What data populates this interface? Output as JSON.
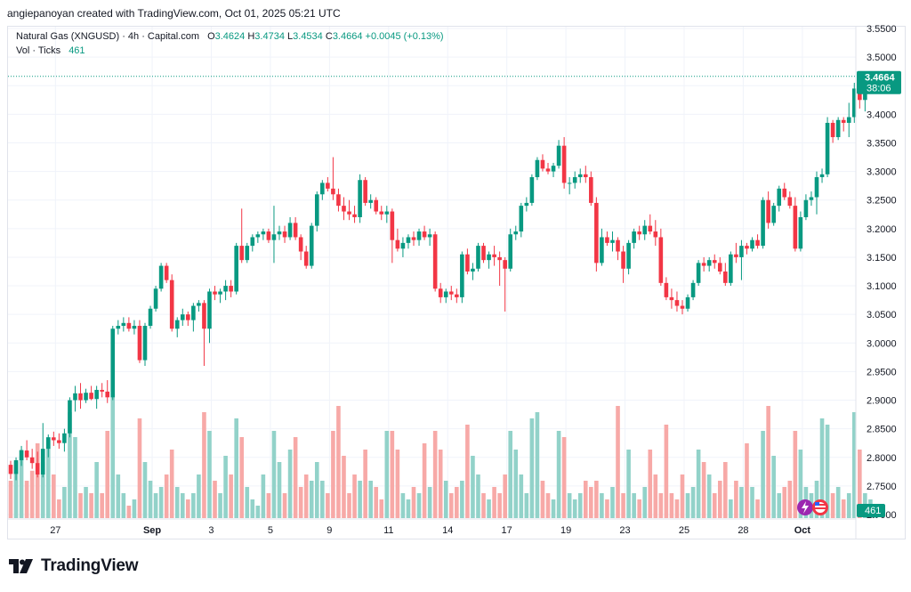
{
  "header": {
    "attribution": "angiepanoyan created with TradingView.com, Oct 01, 2025 05:21 UTC"
  },
  "legend": {
    "symbol": "Natural Gas (XNGUSD) · 4h · Capital.com",
    "o_label": "O",
    "o_value": "3.4624",
    "h_label": "H",
    "h_value": "3.4734",
    "l_label": "L",
    "l_value": "3.4534",
    "c_label": "C",
    "c_value": "3.4664",
    "change": "+0.0045 (+0.13%)",
    "vol_label": "Vol · Ticks",
    "vol_value": "461"
  },
  "price_badge": {
    "price": "3.4664",
    "countdown": "38:06"
  },
  "volume_badge": "461",
  "footer": {
    "brand": "TradingView"
  },
  "colors": {
    "up": "#089981",
    "down": "#f23645",
    "vol_up": "#92d2c9",
    "vol_down": "#f7a9a7"
  },
  "chart_data": {
    "type": "candlestick",
    "interval": "4h",
    "y_ticks": [
      "3.5500",
      "3.5000",
      "3.4500",
      "3.4000",
      "3.3500",
      "3.3000",
      "3.2500",
      "3.2000",
      "3.1500",
      "3.1000",
      "3.0500",
      "3.0000",
      "2.9500",
      "2.9000",
      "2.8500",
      "2.8000",
      "2.7500",
      "2.7000"
    ],
    "ylim": [
      2.7,
      3.55
    ],
    "x_tick_labels": [
      {
        "label": "27",
        "index": 8
      },
      {
        "label": "Sep",
        "index": 26
      },
      {
        "label": "3",
        "index": 37
      },
      {
        "label": "5",
        "index": 48
      },
      {
        "label": "9",
        "index": 59
      },
      {
        "label": "11",
        "index": 70
      },
      {
        "label": "14",
        "index": 81
      },
      {
        "label": "17",
        "index": 92
      },
      {
        "label": "19",
        "index": 103
      },
      {
        "label": "23",
        "index": 114
      },
      {
        "label": "25",
        "index": 125
      },
      {
        "label": "28",
        "index": 136
      },
      {
        "label": "Oct",
        "index": 147
      }
    ],
    "last_price": 3.4664,
    "candles": [
      [
        2.787,
        2.794,
        2.762,
        2.771,
        0.3
      ],
      [
        2.771,
        2.8,
        2.76,
        2.795,
        0.45
      ],
      [
        2.795,
        2.82,
        2.785,
        2.812,
        0.55
      ],
      [
        2.812,
        2.83,
        2.795,
        2.8,
        0.3
      ],
      [
        2.8,
        2.815,
        2.78,
        2.79,
        0.38
      ],
      [
        2.79,
        2.81,
        2.765,
        2.77,
        0.6
      ],
      [
        2.77,
        2.86,
        2.765,
        2.815,
        0.45
      ],
      [
        2.815,
        2.84,
        2.8,
        2.835,
        0.65
      ],
      [
        2.835,
        2.845,
        2.82,
        2.83,
        0.35
      ],
      [
        2.83,
        2.842,
        2.815,
        2.825,
        0.15
      ],
      [
        2.825,
        2.85,
        2.81,
        2.842,
        0.25
      ],
      [
        2.842,
        2.905,
        2.835,
        2.9,
        0.85
      ],
      [
        2.9,
        2.925,
        2.88,
        2.912,
        0.65
      ],
      [
        2.912,
        2.93,
        2.885,
        2.9,
        0.2
      ],
      [
        2.9,
        2.92,
        2.895,
        2.913,
        0.25
      ],
      [
        2.913,
        2.925,
        2.9,
        2.902,
        0.2
      ],
      [
        2.902,
        2.925,
        2.885,
        2.918,
        0.45
      ],
      [
        2.918,
        2.93,
        2.905,
        2.915,
        0.2
      ],
      [
        2.915,
        2.935,
        2.895,
        2.905,
        0.7
      ],
      [
        2.905,
        3.03,
        2.9,
        3.025,
        1.0
      ],
      [
        3.025,
        3.04,
        3.015,
        3.03,
        0.35
      ],
      [
        3.03,
        3.045,
        3.02,
        3.035,
        0.2
      ],
      [
        3.035,
        3.045,
        3.02,
        3.025,
        0.1
      ],
      [
        3.025,
        3.04,
        3.015,
        3.03,
        0.15
      ],
      [
        3.03,
        3.04,
        2.965,
        2.97,
        0.8
      ],
      [
        2.97,
        3.035,
        2.96,
        3.03,
        0.45
      ],
      [
        3.03,
        3.065,
        3.025,
        3.06,
        0.3
      ],
      [
        3.06,
        3.1,
        3.055,
        3.095,
        0.2
      ],
      [
        3.095,
        3.14,
        3.09,
        3.135,
        0.25
      ],
      [
        3.135,
        3.14,
        3.105,
        3.11,
        0.35
      ],
      [
        3.11,
        3.12,
        3.02,
        3.025,
        0.55
      ],
      [
        3.025,
        3.045,
        3.01,
        3.04,
        0.25
      ],
      [
        3.04,
        3.06,
        3.03,
        3.05,
        0.2
      ],
      [
        3.05,
        3.055,
        3.03,
        3.04,
        0.15
      ],
      [
        3.04,
        3.07,
        3.02,
        3.065,
        0.2
      ],
      [
        3.065,
        3.075,
        3.055,
        3.07,
        0.35
      ],
      [
        3.07,
        3.075,
        2.96,
        3.025,
        0.85
      ],
      [
        3.025,
        3.095,
        3.0,
        3.09,
        0.7
      ],
      [
        3.09,
        3.1,
        3.075,
        3.085,
        0.3
      ],
      [
        3.085,
        3.095,
        3.07,
        3.09,
        0.2
      ],
      [
        3.09,
        3.11,
        3.075,
        3.1,
        0.5
      ],
      [
        3.1,
        3.11,
        3.08,
        3.09,
        0.35
      ],
      [
        3.09,
        3.175,
        3.085,
        3.17,
        0.8
      ],
      [
        3.17,
        3.235,
        3.14,
        3.145,
        0.65
      ],
      [
        3.145,
        3.175,
        3.14,
        3.17,
        0.25
      ],
      [
        3.17,
        3.19,
        3.16,
        3.185,
        0.15
      ],
      [
        3.185,
        3.195,
        3.175,
        3.19,
        0.1
      ],
      [
        3.19,
        3.2,
        3.18,
        3.195,
        0.35
      ],
      [
        3.195,
        3.2,
        3.175,
        3.18,
        0.2
      ],
      [
        3.18,
        3.24,
        3.14,
        3.19,
        0.7
      ],
      [
        3.19,
        3.205,
        3.18,
        3.195,
        0.45
      ],
      [
        3.195,
        3.205,
        3.175,
        3.185,
        0.2
      ],
      [
        3.185,
        3.22,
        3.18,
        3.21,
        0.55
      ],
      [
        3.21,
        3.22,
        3.18,
        3.185,
        0.65
      ],
      [
        3.185,
        3.19,
        3.145,
        3.16,
        0.25
      ],
      [
        3.16,
        3.17,
        3.13,
        3.135,
        0.35
      ],
      [
        3.135,
        3.21,
        3.13,
        3.205,
        0.3
      ],
      [
        3.205,
        3.265,
        3.195,
        3.26,
        0.45
      ],
      [
        3.26,
        3.285,
        3.25,
        3.28,
        0.3
      ],
      [
        3.28,
        3.29,
        3.265,
        3.27,
        0.2
      ],
      [
        3.27,
        3.325,
        3.25,
        3.26,
        0.7
      ],
      [
        3.26,
        3.27,
        3.23,
        3.24,
        0.9
      ],
      [
        3.24,
        3.255,
        3.215,
        3.23,
        0.5
      ],
      [
        3.23,
        3.25,
        3.215,
        3.225,
        0.2
      ],
      [
        3.225,
        3.24,
        3.21,
        3.22,
        0.35
      ],
      [
        3.22,
        3.295,
        3.21,
        3.285,
        0.3
      ],
      [
        3.285,
        3.29,
        3.24,
        3.245,
        0.55
      ],
      [
        3.245,
        3.26,
        3.235,
        3.25,
        0.3
      ],
      [
        3.25,
        3.255,
        3.225,
        3.23,
        0.25
      ],
      [
        3.23,
        3.24,
        3.215,
        3.225,
        0.15
      ],
      [
        3.225,
        3.24,
        3.21,
        3.23,
        0.7
      ],
      [
        3.23,
        3.235,
        3.14,
        3.18,
        0.7
      ],
      [
        3.18,
        3.2,
        3.16,
        3.165,
        0.55
      ],
      [
        3.165,
        3.185,
        3.15,
        3.175,
        0.2
      ],
      [
        3.175,
        3.19,
        3.165,
        3.185,
        0.15
      ],
      [
        3.185,
        3.195,
        3.17,
        3.18,
        0.25
      ],
      [
        3.18,
        3.2,
        3.17,
        3.195,
        0.2
      ],
      [
        3.195,
        3.205,
        3.18,
        3.185,
        0.6
      ],
      [
        3.185,
        3.2,
        3.17,
        3.19,
        0.25
      ],
      [
        3.19,
        3.195,
        3.09,
        3.095,
        0.7
      ],
      [
        3.095,
        3.105,
        3.07,
        3.08,
        0.55
      ],
      [
        3.08,
        3.095,
        3.07,
        3.09,
        0.3
      ],
      [
        3.09,
        3.1,
        3.075,
        3.085,
        0.2
      ],
      [
        3.085,
        3.095,
        3.07,
        3.08,
        0.25
      ],
      [
        3.08,
        3.16,
        3.07,
        3.155,
        0.3
      ],
      [
        3.155,
        3.165,
        3.12,
        3.125,
        0.75
      ],
      [
        3.125,
        3.14,
        3.11,
        3.13,
        0.5
      ],
      [
        3.13,
        3.175,
        3.125,
        3.17,
        0.35
      ],
      [
        3.17,
        3.175,
        3.14,
        3.145,
        0.2
      ],
      [
        3.145,
        3.16,
        3.13,
        3.155,
        0.15
      ],
      [
        3.155,
        3.17,
        3.135,
        3.15,
        0.25
      ],
      [
        3.15,
        3.16,
        3.1,
        3.145,
        0.2
      ],
      [
        3.145,
        3.15,
        3.055,
        3.13,
        0.35
      ],
      [
        3.13,
        3.2,
        3.125,
        3.19,
        0.7
      ],
      [
        3.19,
        3.205,
        3.18,
        3.195,
        0.55
      ],
      [
        3.195,
        3.245,
        3.185,
        3.24,
        0.35
      ],
      [
        3.24,
        3.255,
        3.23,
        3.245,
        0.2
      ],
      [
        3.245,
        3.295,
        3.24,
        3.29,
        0.8
      ],
      [
        3.29,
        3.325,
        3.285,
        3.32,
        0.85
      ],
      [
        3.32,
        3.33,
        3.3,
        3.305,
        0.3
      ],
      [
        3.305,
        3.315,
        3.295,
        3.3,
        0.2
      ],
      [
        3.3,
        3.315,
        3.29,
        3.31,
        0.15
      ],
      [
        3.31,
        3.355,
        3.305,
        3.345,
        0.7
      ],
      [
        3.345,
        3.36,
        3.27,
        3.28,
        0.65
      ],
      [
        3.28,
        3.29,
        3.26,
        3.28,
        0.2
      ],
      [
        3.28,
        3.3,
        3.27,
        3.29,
        0.15
      ],
      [
        3.29,
        3.305,
        3.28,
        3.295,
        0.2
      ],
      [
        3.295,
        3.31,
        3.28,
        3.29,
        0.3
      ],
      [
        3.29,
        3.3,
        3.24,
        3.245,
        0.25
      ],
      [
        3.245,
        3.255,
        3.125,
        3.14,
        0.3
      ],
      [
        3.14,
        3.2,
        3.135,
        3.185,
        0.2
      ],
      [
        3.185,
        3.195,
        3.17,
        3.175,
        0.15
      ],
      [
        3.175,
        3.195,
        3.16,
        3.18,
        0.25
      ],
      [
        3.18,
        3.185,
        3.145,
        3.16,
        0.9
      ],
      [
        3.16,
        3.17,
        3.105,
        3.13,
        0.2
      ],
      [
        3.13,
        3.18,
        3.12,
        3.175,
        0.55
      ],
      [
        3.175,
        3.2,
        3.165,
        3.195,
        0.2
      ],
      [
        3.195,
        3.205,
        3.18,
        3.19,
        0.15
      ],
      [
        3.19,
        3.215,
        3.18,
        3.205,
        0.25
      ],
      [
        3.205,
        3.225,
        3.19,
        3.195,
        0.55
      ],
      [
        3.195,
        3.215,
        3.17,
        3.185,
        0.35
      ],
      [
        3.185,
        3.2,
        3.1,
        3.105,
        0.2
      ],
      [
        3.105,
        3.115,
        3.075,
        3.08,
        0.75
      ],
      [
        3.08,
        3.095,
        3.06,
        3.075,
        0.2
      ],
      [
        3.075,
        3.09,
        3.055,
        3.065,
        0.15
      ],
      [
        3.065,
        3.075,
        3.05,
        3.06,
        0.35
      ],
      [
        3.06,
        3.085,
        3.055,
        3.08,
        0.2
      ],
      [
        3.08,
        3.11,
        3.075,
        3.105,
        0.25
      ],
      [
        3.105,
        3.145,
        3.1,
        3.14,
        0.55
      ],
      [
        3.14,
        3.15,
        3.125,
        3.135,
        0.45
      ],
      [
        3.135,
        3.15,
        3.125,
        3.145,
        0.35
      ],
      [
        3.145,
        3.155,
        3.13,
        3.14,
        0.2
      ],
      [
        3.14,
        3.15,
        3.12,
        3.125,
        0.3
      ],
      [
        3.125,
        3.14,
        3.1,
        3.105,
        0.45
      ],
      [
        3.105,
        3.16,
        3.1,
        3.155,
        0.15
      ],
      [
        3.155,
        3.175,
        3.14,
        3.15,
        0.3
      ],
      [
        3.15,
        3.18,
        3.11,
        3.17,
        0.25
      ],
      [
        3.17,
        3.175,
        3.155,
        3.165,
        0.6
      ],
      [
        3.165,
        3.185,
        3.16,
        3.18,
        0.25
      ],
      [
        3.18,
        3.19,
        3.165,
        3.17,
        0.15
      ],
      [
        3.17,
        3.255,
        3.165,
        3.25,
        0.7
      ],
      [
        3.25,
        3.265,
        3.2,
        3.21,
        0.9
      ],
      [
        3.21,
        3.245,
        3.205,
        3.24,
        0.5
      ],
      [
        3.24,
        3.275,
        3.23,
        3.27,
        0.2
      ],
      [
        3.27,
        3.28,
        3.25,
        3.255,
        0.25
      ],
      [
        3.255,
        3.265,
        3.235,
        3.24,
        0.3
      ],
      [
        3.24,
        3.255,
        3.16,
        3.165,
        0.7
      ],
      [
        3.165,
        3.23,
        3.16,
        3.22,
        0.55
      ],
      [
        3.22,
        3.26,
        3.215,
        3.25,
        0.25
      ],
      [
        3.25,
        3.265,
        3.24,
        3.255,
        0.2
      ],
      [
        3.255,
        3.3,
        3.225,
        3.29,
        0.3
      ],
      [
        3.29,
        3.305,
        3.28,
        3.295,
        0.8
      ],
      [
        3.295,
        3.395,
        3.29,
        3.385,
        0.75
      ],
      [
        3.385,
        3.39,
        3.35,
        3.36,
        0.2
      ],
      [
        3.36,
        3.395,
        3.355,
        3.39,
        0.25
      ],
      [
        3.39,
        3.395,
        3.37,
        3.385,
        0.15
      ],
      [
        3.385,
        3.42,
        3.36,
        3.395,
        0.2
      ],
      [
        3.395,
        3.455,
        3.385,
        3.445,
        0.85
      ],
      [
        3.445,
        3.45,
        3.41,
        3.425,
        0.55
      ],
      [
        3.425,
        3.46,
        3.405,
        3.455,
        0.2
      ],
      [
        3.455,
        3.47,
        3.445,
        3.462,
        0.15
      ],
      [
        3.462,
        3.473,
        3.453,
        3.4664,
        0.05
      ]
    ]
  }
}
